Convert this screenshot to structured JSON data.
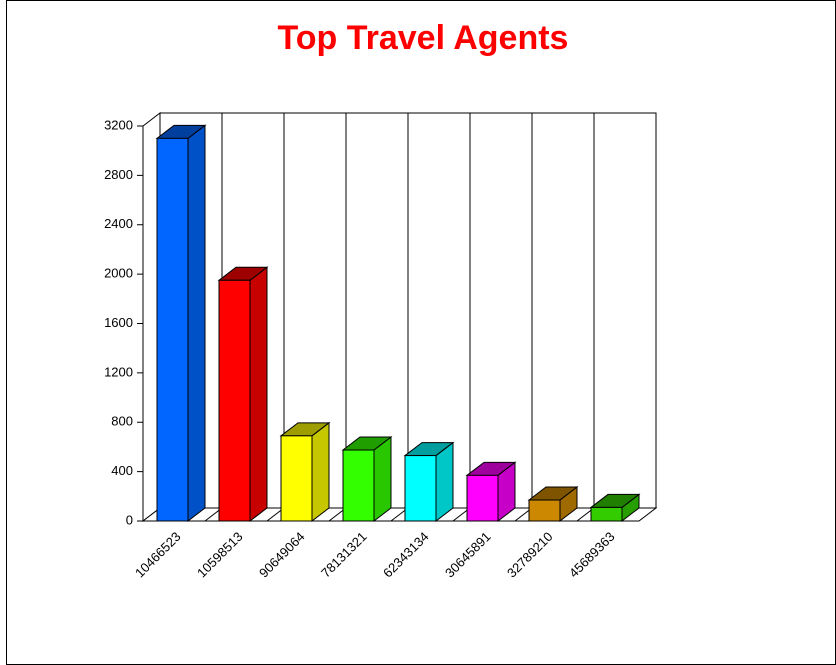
{
  "chart_data": {
    "type": "bar3d",
    "title": "Top Travel Agents",
    "categories": [
      "10466523",
      "10598513",
      "90649064",
      "78131321",
      "62343134",
      "30645891",
      "32789210",
      "45689363"
    ],
    "values": [
      3100,
      1950,
      690,
      575,
      530,
      370,
      170,
      110
    ],
    "colors": [
      "#0066ff",
      "#ff0000",
      "#ffff00",
      "#33ff00",
      "#00ffff",
      "#ff00ff",
      "#cc8800",
      "#33cc00"
    ],
    "ylim": [
      0,
      3200
    ],
    "yticks": [
      0,
      400,
      800,
      1200,
      1600,
      2000,
      2400,
      2800,
      3200
    ]
  }
}
